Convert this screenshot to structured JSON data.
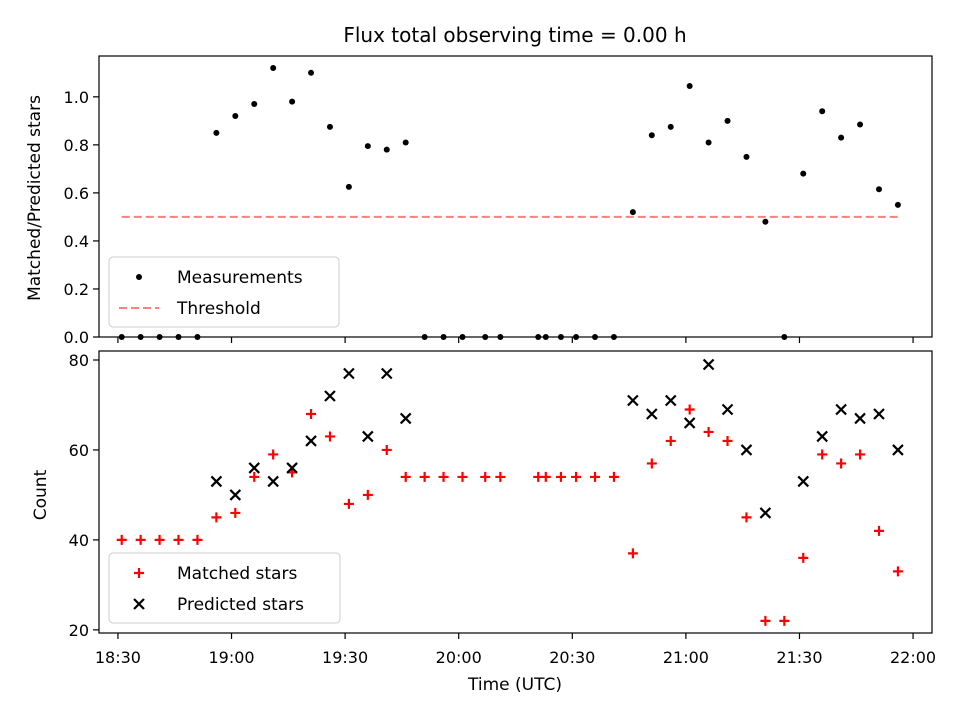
{
  "chart_data": [
    {
      "type": "scatter",
      "title": "Flux total observing time = 0.00 h",
      "xlabel": "",
      "ylabel": "Matched/Predicted stars",
      "xlim": [
        "18:25",
        "22:05"
      ],
      "ylim": [
        0,
        1.17
      ],
      "yticks": [
        0.0,
        0.2,
        0.4,
        0.6,
        0.8,
        1.0
      ],
      "ytick_labels": [
        "0.0",
        "0.2",
        "0.4",
        "0.6",
        "0.8",
        "1.0"
      ],
      "xticks": [
        "18:30",
        "19:00",
        "19:30",
        "20:00",
        "20:30",
        "21:00",
        "21:30",
        "22:00"
      ],
      "grid": false,
      "legend_position": "lower-left",
      "series": [
        {
          "name": "Measurements",
          "kind": "scatter",
          "marker": "dot",
          "color": "#000000",
          "points": [
            [
              "18:31",
              0.0
            ],
            [
              "18:36",
              0.0
            ],
            [
              "18:41",
              0.0
            ],
            [
              "18:46",
              0.0
            ],
            [
              "18:51",
              0.0
            ],
            [
              "18:56",
              0.85
            ],
            [
              "19:01",
              0.92
            ],
            [
              "19:06",
              0.97
            ],
            [
              "19:11",
              1.12
            ],
            [
              "19:16",
              0.98
            ],
            [
              "19:21",
              1.1
            ],
            [
              "19:26",
              0.875
            ],
            [
              "19:31",
              0.625
            ],
            [
              "19:36",
              0.795
            ],
            [
              "19:41",
              0.78
            ],
            [
              "19:46",
              0.81
            ],
            [
              "19:51",
              0.0
            ],
            [
              "19:56",
              0.0
            ],
            [
              "20:01",
              0.0
            ],
            [
              "20:07",
              0.0
            ],
            [
              "20:11",
              0.0
            ],
            [
              "20:21",
              0.0
            ],
            [
              "20:23",
              0.0
            ],
            [
              "20:27",
              0.0
            ],
            [
              "20:31",
              0.0
            ],
            [
              "20:36",
              0.0
            ],
            [
              "20:41",
              0.0
            ],
            [
              "20:46",
              0.52
            ],
            [
              "20:51",
              0.84
            ],
            [
              "20:56",
              0.875
            ],
            [
              "21:01",
              1.045
            ],
            [
              "21:06",
              0.81
            ],
            [
              "21:11",
              0.9
            ],
            [
              "21:16",
              0.75
            ],
            [
              "21:21",
              0.48
            ],
            [
              "21:26",
              0.0
            ],
            [
              "21:31",
              0.68
            ],
            [
              "21:36",
              0.94
            ],
            [
              "21:41",
              0.83
            ],
            [
              "21:46",
              0.885
            ],
            [
              "21:51",
              0.615
            ],
            [
              "21:56",
              0.55
            ]
          ]
        },
        {
          "name": "Threshold",
          "kind": "line",
          "style": "dashed",
          "color": "#ff7f7f",
          "points": [
            [
              "18:31",
              0.5
            ],
            [
              "21:56",
              0.5
            ]
          ]
        }
      ]
    },
    {
      "type": "scatter",
      "title": "",
      "xlabel": "Time (UTC)",
      "ylabel": "Count",
      "xlim": [
        "18:25",
        "22:05"
      ],
      "ylim": [
        19.3,
        82
      ],
      "yticks": [
        20,
        40,
        60,
        80
      ],
      "ytick_labels": [
        "20",
        "40",
        "60",
        "80"
      ],
      "xticks": [
        "18:30",
        "19:00",
        "19:30",
        "20:00",
        "20:30",
        "21:00",
        "21:30",
        "22:00"
      ],
      "grid": false,
      "legend_position": "lower-left",
      "series": [
        {
          "name": "Matched stars",
          "marker": "plus",
          "color": "#ff0000",
          "points": [
            [
              "18:31",
              40
            ],
            [
              "18:36",
              40
            ],
            [
              "18:41",
              40
            ],
            [
              "18:46",
              40
            ],
            [
              "18:51",
              40
            ],
            [
              "18:56",
              45
            ],
            [
              "19:01",
              46
            ],
            [
              "19:06",
              54
            ],
            [
              "19:11",
              59
            ],
            [
              "19:16",
              55
            ],
            [
              "19:21",
              68
            ],
            [
              "19:26",
              63
            ],
            [
              "19:31",
              48
            ],
            [
              "19:36",
              50
            ],
            [
              "19:41",
              60
            ],
            [
              "19:46",
              54
            ],
            [
              "19:51",
              54
            ],
            [
              "19:56",
              54
            ],
            [
              "20:01",
              54
            ],
            [
              "20:07",
              54
            ],
            [
              "20:11",
              54
            ],
            [
              "20:21",
              54
            ],
            [
              "20:23",
              54
            ],
            [
              "20:27",
              54
            ],
            [
              "20:31",
              54
            ],
            [
              "20:36",
              54
            ],
            [
              "20:41",
              54
            ],
            [
              "20:46",
              37
            ],
            [
              "20:51",
              57
            ],
            [
              "20:56",
              62
            ],
            [
              "21:01",
              69
            ],
            [
              "21:06",
              64
            ],
            [
              "21:11",
              62
            ],
            [
              "21:16",
              45
            ],
            [
              "21:21",
              22
            ],
            [
              "21:26",
              22
            ],
            [
              "21:31",
              36
            ],
            [
              "21:36",
              59
            ],
            [
              "21:41",
              57
            ],
            [
              "21:46",
              59
            ],
            [
              "21:51",
              42
            ],
            [
              "21:56",
              33
            ]
          ]
        },
        {
          "name": "Predicted stars",
          "marker": "x",
          "color": "#000000",
          "points": [
            [
              "18:56",
              53
            ],
            [
              "19:01",
              50
            ],
            [
              "19:06",
              56
            ],
            [
              "19:11",
              53
            ],
            [
              "19:16",
              56
            ],
            [
              "19:21",
              62
            ],
            [
              "19:26",
              72
            ],
            [
              "19:31",
              77
            ],
            [
              "19:36",
              63
            ],
            [
              "19:41",
              77
            ],
            [
              "19:46",
              67
            ],
            [
              "20:46",
              71
            ],
            [
              "20:51",
              68
            ],
            [
              "20:56",
              71
            ],
            [
              "21:01",
              66
            ],
            [
              "21:06",
              79
            ],
            [
              "21:11",
              69
            ],
            [
              "21:16",
              60
            ],
            [
              "21:21",
              46
            ],
            [
              "21:31",
              53
            ],
            [
              "21:36",
              63
            ],
            [
              "21:41",
              69
            ],
            [
              "21:46",
              67
            ],
            [
              "21:51",
              68
            ],
            [
              "21:56",
              60
            ]
          ]
        }
      ]
    }
  ]
}
